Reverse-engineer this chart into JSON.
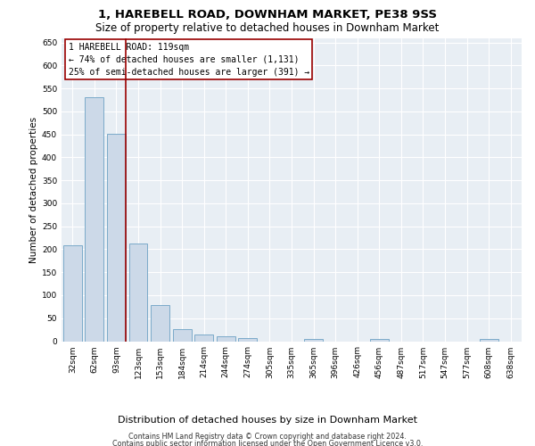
{
  "title": "1, HAREBELL ROAD, DOWNHAM MARKET, PE38 9SS",
  "subtitle": "Size of property relative to detached houses in Downham Market",
  "xlabel": "Distribution of detached houses by size in Downham Market",
  "ylabel": "Number of detached properties",
  "footer_line1": "Contains HM Land Registry data © Crown copyright and database right 2024.",
  "footer_line2": "Contains public sector information licensed under the Open Government Licence v3.0.",
  "categories": [
    "32sqm",
    "62sqm",
    "93sqm",
    "123sqm",
    "153sqm",
    "184sqm",
    "214sqm",
    "244sqm",
    "274sqm",
    "305sqm",
    "335sqm",
    "365sqm",
    "396sqm",
    "426sqm",
    "456sqm",
    "487sqm",
    "517sqm",
    "547sqm",
    "577sqm",
    "608sqm",
    "638sqm"
  ],
  "values": [
    208,
    530,
    452,
    213,
    78,
    26,
    15,
    11,
    7,
    0,
    0,
    5,
    0,
    0,
    5,
    0,
    0,
    0,
    0,
    5,
    0
  ],
  "bar_color": "#ccd9e8",
  "bar_edge_color": "#7baac9",
  "vline_color": "#990000",
  "vline_xindex": 2.425,
  "annotation_line1": "1 HAREBELL ROAD: 119sqm",
  "annotation_line2": "← 74% of detached houses are smaller (1,131)",
  "annotation_line3": "25% of semi-detached houses are larger (391) →",
  "ylim": [
    0,
    660
  ],
  "yticks": [
    0,
    50,
    100,
    150,
    200,
    250,
    300,
    350,
    400,
    450,
    500,
    550,
    600,
    650
  ],
  "plot_background_color": "#e8eef4",
  "title_fontsize": 9.5,
  "subtitle_fontsize": 8.5,
  "xlabel_fontsize": 8,
  "ylabel_fontsize": 7.5,
  "tick_fontsize": 6.5,
  "annotation_fontsize": 7,
  "footer_fontsize": 5.8
}
